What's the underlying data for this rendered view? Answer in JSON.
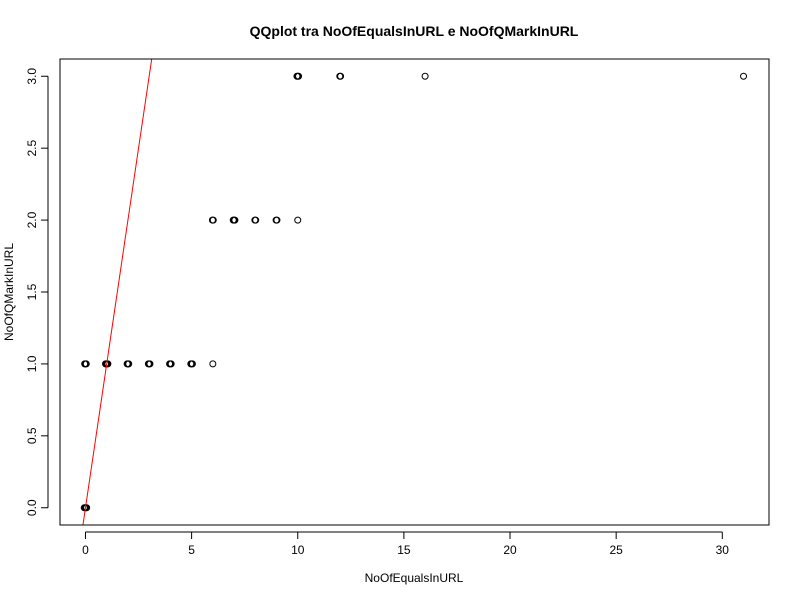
{
  "chart_data": {
    "type": "scatter",
    "title": "QQplot tra NoOfEqualsInURL e NoOfQMarkInURL",
    "xlabel": "NoOfEqualsInURL",
    "ylabel": "NoOfQMarkInURL",
    "xlim": [
      -1.2,
      32.2
    ],
    "ylim": [
      -0.12,
      3.12
    ],
    "x_ticks": [
      0,
      5,
      10,
      15,
      20,
      25,
      30
    ],
    "y_ticks": [
      0.0,
      0.5,
      1.0,
      1.5,
      2.0,
      2.5,
      3.0
    ],
    "x_tick_labels": [
      "0",
      "5",
      "10",
      "15",
      "20",
      "25",
      "30"
    ],
    "y_tick_labels": [
      "0.0",
      "0.5",
      "1.0",
      "1.5",
      "2.0",
      "2.5",
      "3.0"
    ],
    "points": [
      {
        "x": 0,
        "y": 0,
        "count": 4
      },
      {
        "x": 0,
        "y": 1,
        "count": 3
      },
      {
        "x": 1,
        "y": 1,
        "count": 4
      },
      {
        "x": 2,
        "y": 1,
        "count": 3
      },
      {
        "x": 3,
        "y": 1,
        "count": 3
      },
      {
        "x": 4,
        "y": 1,
        "count": 3
      },
      {
        "x": 5,
        "y": 1,
        "count": 3
      },
      {
        "x": 6,
        "y": 1,
        "count": 1
      },
      {
        "x": 6,
        "y": 2,
        "count": 2
      },
      {
        "x": 7,
        "y": 2,
        "count": 3
      },
      {
        "x": 8,
        "y": 2,
        "count": 2
      },
      {
        "x": 9,
        "y": 2,
        "count": 2
      },
      {
        "x": 10,
        "y": 2,
        "count": 1
      },
      {
        "x": 10,
        "y": 3,
        "count": 3
      },
      {
        "x": 12,
        "y": 3,
        "count": 2
      },
      {
        "x": 16,
        "y": 3,
        "count": 1
      },
      {
        "x": 31,
        "y": 3,
        "count": 1
      }
    ],
    "reference_line": {
      "type": "qqline",
      "color": "#ff0000",
      "through": [
        [
          0,
          0
        ],
        [
          1,
          1
        ]
      ]
    },
    "point_color": "#000000",
    "grid": false,
    "legend": "none"
  }
}
